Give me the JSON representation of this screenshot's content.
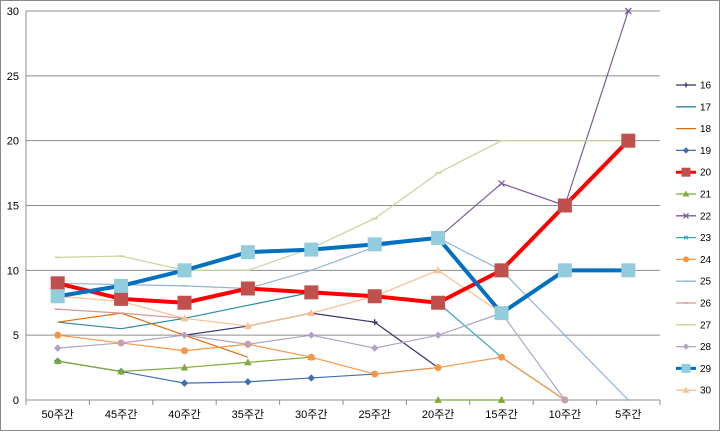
{
  "chart_data": {
    "type": "line",
    "title": "",
    "xlabel": "",
    "ylabel": "",
    "categories": [
      "50주간",
      "45주간",
      "40주간",
      "35주간",
      "30주간",
      "25주간",
      "20주간",
      "15주간",
      "10주간",
      "5주간"
    ],
    "ylim": [
      0,
      30
    ],
    "yticks": [
      0,
      5,
      10,
      15,
      20,
      25,
      30
    ],
    "grid": "horizontal",
    "legend_position": "right",
    "series": [
      {
        "name": "16",
        "color": "#3d2c6a",
        "marker": "plus",
        "width": 1.2,
        "values": [
          null,
          null,
          5,
          5.7,
          6.7,
          6,
          2.5,
          null,
          null,
          null
        ]
      },
      {
        "name": "17",
        "color": "#2a8aa3",
        "marker": "none",
        "width": 1.2,
        "values": [
          6,
          5.5,
          6.3,
          7.3,
          8.3,
          null,
          null,
          null,
          null,
          null
        ]
      },
      {
        "name": "18",
        "color": "#e36c0a",
        "marker": "none",
        "width": 1.2,
        "values": [
          6,
          6.7,
          5,
          3.3,
          null,
          null,
          null,
          null,
          null,
          null
        ]
      },
      {
        "name": "19",
        "color": "#3e6fb0",
        "marker": "diamond",
        "width": 1.2,
        "values": [
          3,
          2.2,
          1.3,
          1.4,
          1.7,
          2,
          2.5,
          null,
          null,
          null
        ]
      },
      {
        "name": "20",
        "color": "#ff0000",
        "marker": "square",
        "markerColor": "#c0504d",
        "width": 4,
        "values": [
          9,
          7.8,
          7.5,
          8.6,
          8.3,
          8,
          7.5,
          10,
          15,
          20
        ]
      },
      {
        "name": "21",
        "color": "#7faa38",
        "marker": "triangle",
        "width": 1.2,
        "values": [
          3,
          2.2,
          2.5,
          2.9,
          3.3,
          null,
          0,
          0,
          null,
          null
        ]
      },
      {
        "name": "22",
        "color": "#7a5a9e",
        "marker": "x",
        "width": 1.2,
        "values": [
          null,
          null,
          null,
          null,
          null,
          null,
          12.5,
          16.7,
          15,
          30
        ]
      },
      {
        "name": "23",
        "color": "#3aa5c0",
        "marker": "star",
        "width": 1.2,
        "values": [
          null,
          null,
          null,
          null,
          null,
          8,
          7.5,
          3.3,
          0,
          null
        ]
      },
      {
        "name": "24",
        "color": "#f79646",
        "marker": "circle",
        "width": 1.2,
        "values": [
          5,
          4.4,
          3.8,
          4.3,
          3.3,
          2,
          2.5,
          3.3,
          0,
          null
        ]
      },
      {
        "name": "25",
        "color": "#95b3d7",
        "marker": "dash",
        "width": 1.2,
        "values": [
          9,
          8.9,
          8.8,
          8.6,
          10,
          11.8,
          12.5,
          10,
          5,
          0
        ]
      },
      {
        "name": "26",
        "color": "#d99694",
        "marker": "dash",
        "width": 1.2,
        "values": [
          7,
          6.7,
          6.3,
          null,
          null,
          null,
          null,
          null,
          10,
          10
        ]
      },
      {
        "name": "27",
        "color": "#c3d69b",
        "marker": "dash",
        "width": 1.2,
        "values": [
          11,
          11.1,
          10,
          10,
          11.7,
          14,
          17.5,
          20,
          20,
          20
        ]
      },
      {
        "name": "28",
        "color": "#b3a2c7",
        "marker": "diamond",
        "width": 1.2,
        "values": [
          4,
          4.4,
          5,
          4.3,
          5,
          4,
          5,
          6.7,
          0,
          null
        ]
      },
      {
        "name": "29",
        "color": "#0070c0",
        "marker": "square",
        "markerColor": "#93cddd",
        "width": 4,
        "values": [
          8,
          8.8,
          10,
          11.4,
          11.6,
          12,
          12.5,
          6.7,
          10,
          10
        ]
      },
      {
        "name": "30",
        "color": "#fac090",
        "marker": "triangle",
        "width": 1.2,
        "values": [
          8,
          7.6,
          6.3,
          5.7,
          6.7,
          8,
          10,
          6.7,
          null,
          null
        ]
      }
    ]
  }
}
